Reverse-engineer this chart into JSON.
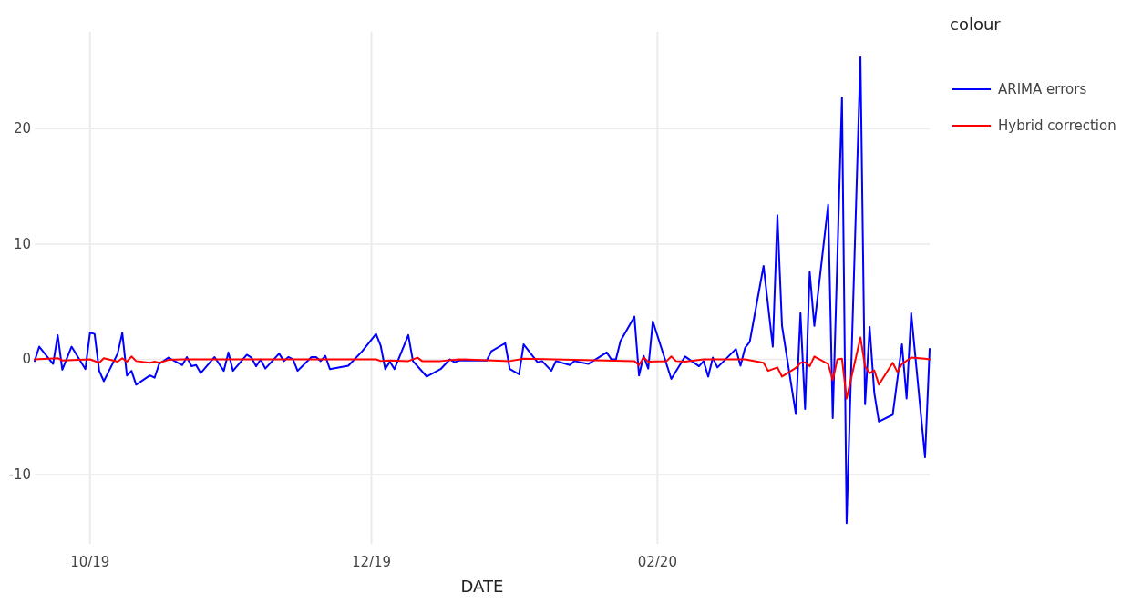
{
  "chart_data": {
    "type": "line",
    "xlabel": "DATE",
    "legend_title": "colour",
    "legend": "right",
    "grid": true,
    "xlim": [
      "2019-09-19",
      "2020-03-31"
    ],
    "xticks": [
      {
        "value": "2019-10-01",
        "label": "10/19"
      },
      {
        "value": "2019-12-01",
        "label": "12/19"
      },
      {
        "value": "2020-02-01",
        "label": "02/20"
      }
    ],
    "ylim": [
      -16,
      28.4
    ],
    "yticks": [
      -10,
      0,
      10,
      20
    ],
    "series": [
      {
        "name": "ARIMA errors",
        "color": "#0000ff",
        "x": [
          "2019-09-19",
          "2019-09-20",
          "2019-09-23",
          "2019-09-24",
          "2019-09-25",
          "2019-09-27",
          "2019-09-30",
          "2019-10-01",
          "2019-10-02",
          "2019-10-03",
          "2019-10-04",
          "2019-10-07",
          "2019-10-08",
          "2019-10-09",
          "2019-10-10",
          "2019-10-11",
          "2019-10-14",
          "2019-10-15",
          "2019-10-16",
          "2019-10-18",
          "2019-10-21",
          "2019-10-22",
          "2019-10-23",
          "2019-10-24",
          "2019-10-25",
          "2019-10-28",
          "2019-10-30",
          "2019-10-31",
          "2019-11-01",
          "2019-11-04",
          "2019-11-05",
          "2019-11-06",
          "2019-11-07",
          "2019-11-08",
          "2019-11-11",
          "2019-11-12",
          "2019-11-13",
          "2019-11-14",
          "2019-11-15",
          "2019-11-18",
          "2019-11-19",
          "2019-11-20",
          "2019-11-21",
          "2019-11-22",
          "2019-11-26",
          "2019-11-29",
          "2019-12-02",
          "2019-12-03",
          "2019-12-04",
          "2019-12-05",
          "2019-12-06",
          "2019-12-09",
          "2019-12-10",
          "2019-12-13",
          "2019-12-16",
          "2019-12-18",
          "2019-12-19",
          "2019-12-20",
          "2019-12-26",
          "2019-12-27",
          "2019-12-30",
          "2019-12-31",
          "2020-01-02",
          "2020-01-03",
          "2020-01-06",
          "2020-01-07",
          "2020-01-09",
          "2020-01-10",
          "2020-01-13",
          "2020-01-14",
          "2020-01-17",
          "2020-01-21",
          "2020-01-22",
          "2020-01-23",
          "2020-01-24",
          "2020-01-27",
          "2020-01-28",
          "2020-01-29",
          "2020-01-30",
          "2020-01-31",
          "2020-02-04",
          "2020-02-07",
          "2020-02-10",
          "2020-02-11",
          "2020-02-12",
          "2020-02-13",
          "2020-02-14",
          "2020-02-18",
          "2020-02-19",
          "2020-02-20",
          "2020-02-21",
          "2020-02-24",
          "2020-02-26",
          "2020-02-27",
          "2020-02-28",
          "2020-03-02",
          "2020-03-03",
          "2020-03-04",
          "2020-03-05",
          "2020-03-06",
          "2020-03-09",
          "2020-03-10",
          "2020-03-12",
          "2020-03-13",
          "2020-03-16",
          "2020-03-17",
          "2020-03-18",
          "2020-03-19",
          "2020-03-20",
          "2020-03-23",
          "2020-03-25",
          "2020-03-26",
          "2020-03-27",
          "2020-03-30",
          "2020-03-31"
        ],
        "values": [
          -0.15,
          1.1,
          -0.4,
          2.1,
          -0.9,
          1.1,
          -0.85,
          2.3,
          2.2,
          -1.0,
          -1.9,
          0.5,
          2.3,
          -1.4,
          -1.0,
          -2.2,
          -1.4,
          -1.6,
          -0.4,
          0.15,
          -0.5,
          0.2,
          -0.6,
          -0.5,
          -1.2,
          0.2,
          -1.0,
          0.6,
          -1.0,
          0.4,
          0.15,
          -0.6,
          0,
          -0.8,
          0.5,
          -0.15,
          0.2,
          0,
          -1.0,
          0.2,
          0.2,
          -0.15,
          0.3,
          -0.85,
          -0.55,
          0.7,
          2.2,
          1.2,
          -0.85,
          -0.2,
          -0.85,
          2.1,
          -0.15,
          -1.5,
          -0.85,
          0,
          -0.25,
          -0.1,
          -0.1,
          0.7,
          1.4,
          -0.85,
          -1.3,
          1.3,
          -0.25,
          -0.15,
          -1.0,
          -0.15,
          -0.5,
          -0.15,
          -0.4,
          0.6,
          0,
          0,
          1.6,
          3.7,
          -1.4,
          0.3,
          -0.8,
          3.3,
          -1.7,
          0.25,
          -0.6,
          -0.15,
          -1.5,
          0.15,
          -0.7,
          0.9,
          -0.55,
          1.0,
          1.5,
          8.1,
          1.1,
          12.5,
          2.9,
          -4.75,
          4.0,
          -4.3,
          7.6,
          2.9,
          13.4,
          -5.1,
          22.7,
          -14.2,
          26.2,
          -3.9,
          2.8,
          -2.9,
          -5.4,
          -4.8,
          1.3,
          -3.4,
          4.0,
          -8.5,
          0.9
        ]
      },
      {
        "name": "Hybrid correction",
        "color": "#ff0000",
        "x": [
          "2019-09-19",
          "2019-09-24",
          "2019-09-25",
          "2019-10-01",
          "2019-10-03",
          "2019-10-04",
          "2019-10-07",
          "2019-10-08",
          "2019-10-09",
          "2019-10-10",
          "2019-10-11",
          "2019-10-14",
          "2019-10-15",
          "2019-10-16",
          "2019-10-18",
          "2019-10-21",
          "2019-12-02",
          "2019-12-03",
          "2019-12-05",
          "2019-12-09",
          "2019-12-11",
          "2019-12-12",
          "2019-12-16",
          "2019-12-20",
          "2019-12-31",
          "2020-01-03",
          "2020-01-27",
          "2020-01-28",
          "2020-01-29",
          "2020-01-30",
          "2020-02-03",
          "2020-02-04",
          "2020-02-05",
          "2020-02-07",
          "2020-02-11",
          "2020-02-20",
          "2020-02-24",
          "2020-02-25",
          "2020-02-27",
          "2020-02-28",
          "2020-03-02",
          "2020-03-03",
          "2020-03-04",
          "2020-03-05",
          "2020-03-06",
          "2020-03-09",
          "2020-03-10",
          "2020-03-11",
          "2020-03-12",
          "2020-03-13",
          "2020-03-16",
          "2020-03-17",
          "2020-03-18",
          "2020-03-19",
          "2020-03-20",
          "2020-03-23",
          "2020-03-24",
          "2020-03-25",
          "2020-03-27",
          "2020-03-30",
          "2020-03-31"
        ],
        "values": [
          0,
          0.1,
          -0.1,
          0,
          -0.3,
          0.1,
          -0.2,
          0.1,
          -0.2,
          0.25,
          -0.15,
          -0.3,
          -0.2,
          -0.3,
          -0.05,
          0,
          0,
          -0.15,
          -0.1,
          -0.15,
          0.15,
          -0.15,
          -0.15,
          0,
          -0.15,
          0.05,
          -0.15,
          -0.5,
          0.15,
          -0.2,
          -0.15,
          0.25,
          -0.15,
          -0.2,
          0,
          0,
          -0.3,
          -1.0,
          -0.7,
          -1.5,
          -0.75,
          -0.3,
          -0.25,
          -0.6,
          0.25,
          -0.4,
          -1.8,
          0,
          0.05,
          -3.4,
          1.9,
          -0.6,
          -1.2,
          -0.95,
          -2.2,
          -0.3,
          -1.1,
          -0.4,
          0.15,
          0.05,
          0
        ]
      }
    ]
  }
}
